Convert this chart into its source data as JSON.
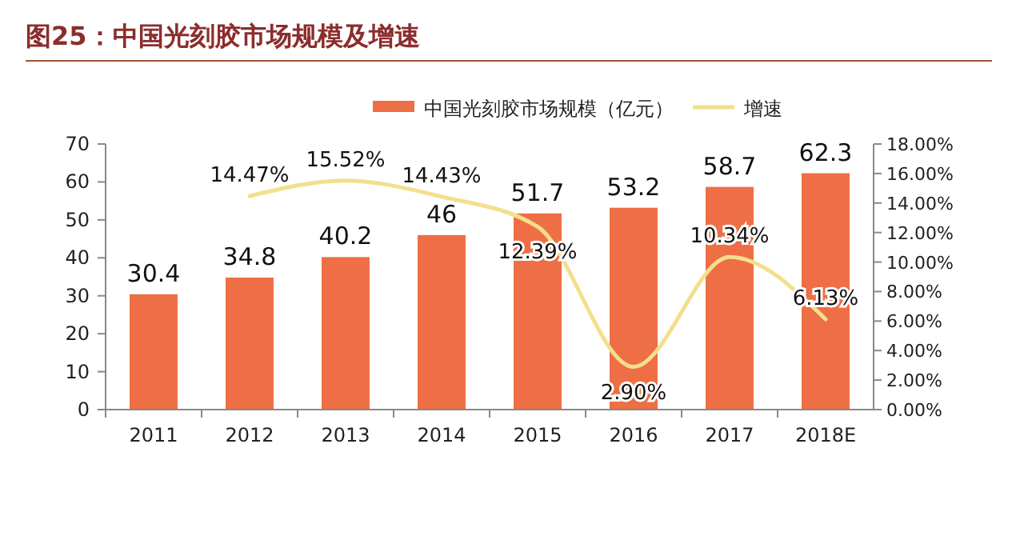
{
  "chart_data": {
    "type": "bar",
    "title": "图25：中国光刻胶市场规模及增速",
    "categories": [
      "2011",
      "2012",
      "2013",
      "2014",
      "2015",
      "2016",
      "2017",
      "2018E"
    ],
    "series": [
      {
        "name": "中国光刻胶市场规模（亿元）",
        "color": "#ee6f45",
        "values": [
          30.4,
          34.8,
          40.2,
          46,
          51.7,
          53.2,
          58.7,
          62.3
        ],
        "value_labels": [
          "30.4",
          "34.8",
          "40.2",
          "46",
          "51.7",
          "53.2",
          "58.7",
          "62.3"
        ]
      },
      {
        "name": "增速",
        "type": "line",
        "axis": "y2",
        "color": "#f3df8c",
        "values": [
          null,
          14.47,
          15.52,
          14.43,
          12.39,
          2.9,
          10.34,
          6.13
        ],
        "value_labels": [
          null,
          "14.47%",
          "15.52%",
          "14.43%",
          "12.39%",
          "2.90%",
          "10.34%",
          "6.13%"
        ]
      }
    ],
    "ylim": [
      0,
      70
    ],
    "yticks": [
      0,
      10,
      20,
      30,
      40,
      50,
      60,
      70
    ],
    "y2lim": [
      0,
      18
    ],
    "y2ticks": [
      {
        "value": 0,
        "label": "0.00%"
      },
      {
        "value": 2,
        "label": "2.00%"
      },
      {
        "value": 4,
        "label": "4.00%"
      },
      {
        "value": 6,
        "label": "6.00%"
      },
      {
        "value": 8,
        "label": "8.00%"
      },
      {
        "value": 10,
        "label": "10.00%"
      },
      {
        "value": 12,
        "label": "12.00%"
      },
      {
        "value": 14,
        "label": "14.00%"
      },
      {
        "value": 16,
        "label": "16.00%"
      },
      {
        "value": 18,
        "label": "18.00%"
      }
    ],
    "legend": "top",
    "marker": "none"
  }
}
